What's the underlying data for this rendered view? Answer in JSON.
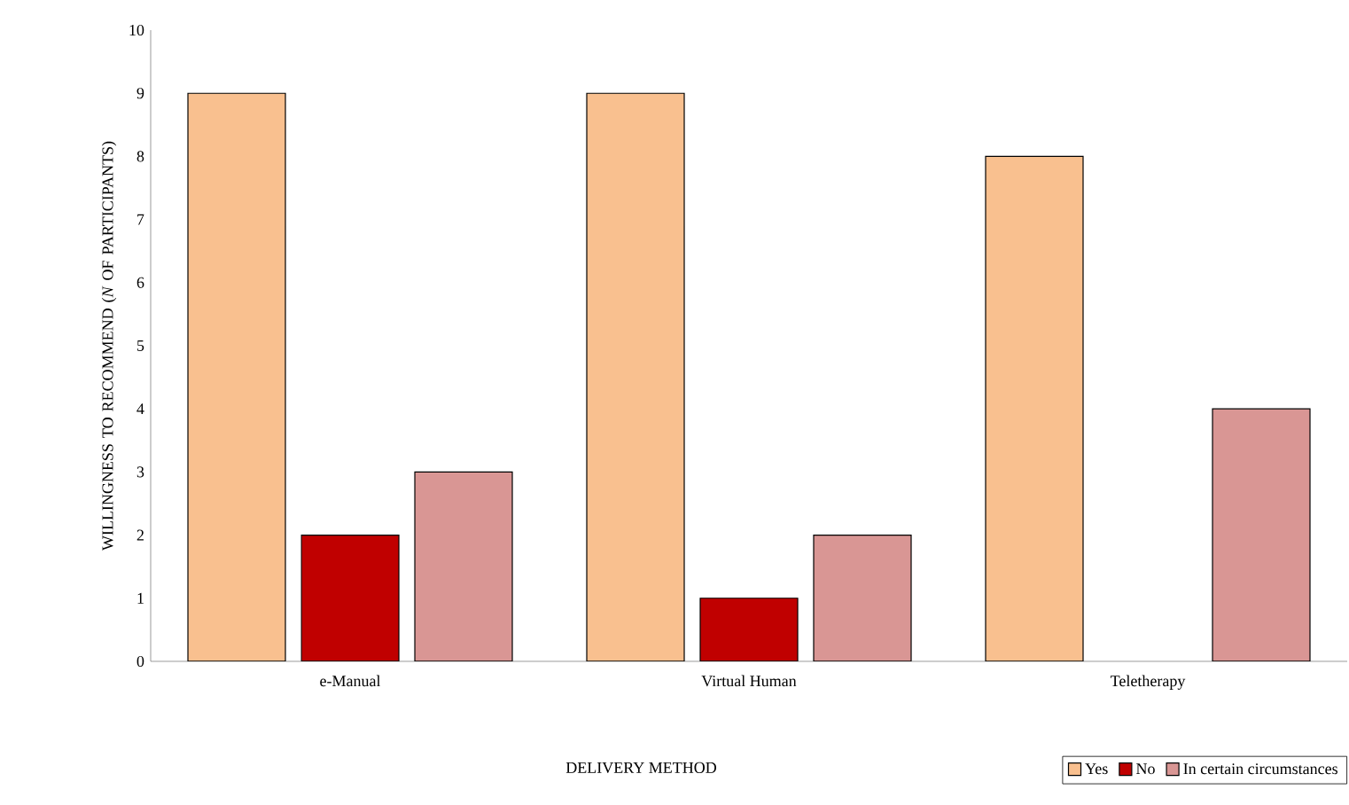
{
  "chart_data": {
    "type": "bar",
    "xlabel": "DELIVERY METHOD",
    "ylabel": "WILLINGNESS TO RECOMMEND (*N* OF PARTICIPANTS)",
    "categories": [
      "e-Manual",
      "Virtual Human",
      "Teletherapy"
    ],
    "series": [
      {
        "name": "Yes",
        "color": "#f9c08f",
        "values": [
          9,
          9,
          8
        ]
      },
      {
        "name": "No",
        "color": "#c00000",
        "values": [
          2,
          1,
          null
        ]
      },
      {
        "name": "In certain circumstances",
        "color": "#d99694",
        "values": [
          3,
          2,
          4
        ]
      }
    ],
    "ylim": [
      0,
      10
    ],
    "yticks": [
      0,
      1,
      2,
      3,
      4,
      5,
      6,
      7,
      8,
      9,
      10
    ],
    "legend": "bottom"
  }
}
